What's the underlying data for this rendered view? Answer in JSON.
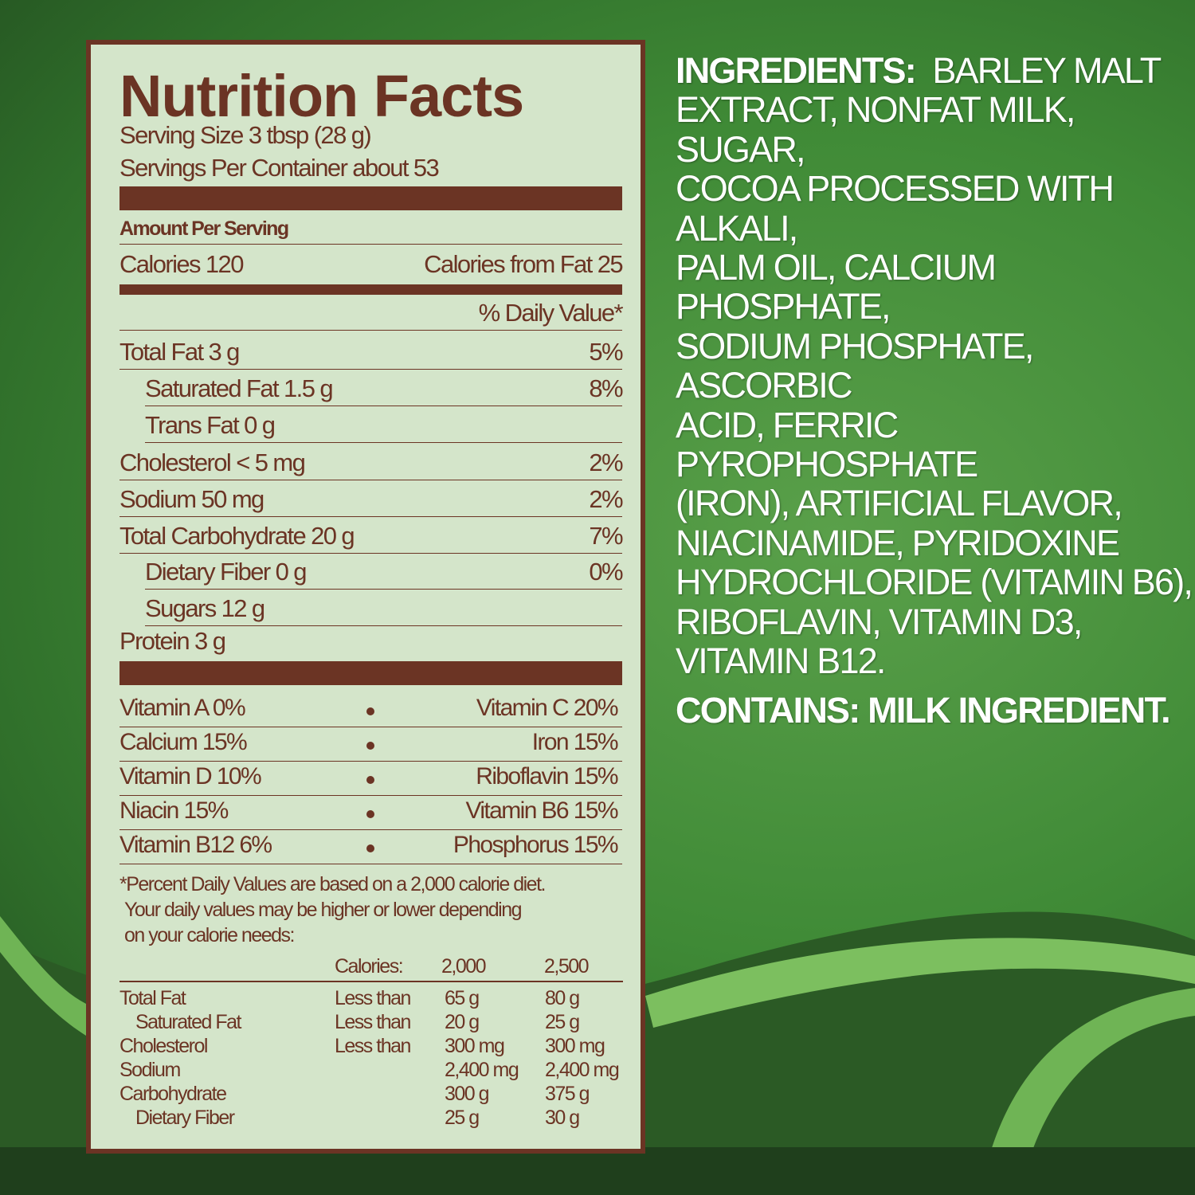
{
  "colors": {
    "label_brown": "#6b3424",
    "label_bg": "#d4e5ca",
    "background_green": "#3f8a36"
  },
  "label": {
    "title": "Nutrition Facts",
    "serving_size": "Serving Size 3 tbsp (28 g)",
    "servings_per_container": "Servings Per Container about 53",
    "amount_per_serving": "Amount Per Serving",
    "calories": "Calories 120",
    "calories_from_fat": "Calories from Fat 25",
    "daily_value_header": "% Daily Value*",
    "nutrients": [
      {
        "name": "Total Fat  3 g",
        "dv": "5%"
      },
      {
        "name": "Saturated Fat 1.5 g",
        "dv": "8%"
      },
      {
        "name": "Trans Fat 0 g",
        "dv": ""
      },
      {
        "name": "Cholesterol < 5 mg",
        "dv": "2%"
      },
      {
        "name": "Sodium 50 mg",
        "dv": "2%"
      },
      {
        "name": "Total Carbohydrate  20 g",
        "dv": "7%"
      },
      {
        "name": "Dietary Fiber 0 g",
        "dv": "0%"
      },
      {
        "name": "Sugars 12 g",
        "dv": ""
      },
      {
        "name": "Protein 3 g",
        "dv": ""
      }
    ],
    "vitamins": [
      {
        "left": "Vitamin  A  0%",
        "right": "Vitamin C  20%"
      },
      {
        "left": "Calcium  15%",
        "right": "Iron  15%"
      },
      {
        "left": "Vitamin D  10%",
        "right": "Riboflavin  15%"
      },
      {
        "left": "Niacin  15%",
        "right": "Vitamin B6  15%"
      },
      {
        "left": "Vitamin B12  6%",
        "right": "Phosphorus  15%"
      }
    ],
    "footnote": [
      "*Percent Daily Values are based on a 2,000 calorie diet.",
      "Your daily  values may be higher or lower depending",
      "on your calorie needs:"
    ],
    "dv_table": {
      "header": [
        "Calories:",
        "2,000",
        "2,500"
      ],
      "rows": [
        [
          "Total Fat",
          "Less than",
          "65 g",
          "80 g"
        ],
        [
          "Saturated Fat",
          "Less than",
          "20 g",
          "25 g"
        ],
        [
          "Cholesterol",
          "Less than",
          "300 mg",
          "300 mg"
        ],
        [
          "Sodium",
          "",
          "2,400 mg",
          "2,400 mg"
        ],
        [
          "Carbohydrate",
          "",
          "300 g",
          "375 g"
        ],
        [
          "Dietary Fiber",
          "",
          "25 g",
          "30 g"
        ]
      ]
    }
  },
  "ingredients": {
    "label": "INGREDIENTS:",
    "lines": [
      "BARLEY MALT",
      "EXTRACT, NONFAT MILK, SUGAR,",
      "COCOA PROCESSED WITH ALKALI,",
      "PALM OIL, CALCIUM PHOSPHATE,",
      "SODIUM PHOSPHATE, ASCORBIC",
      "ACID, FERRIC PYROPHOSPHATE",
      "(IRON), ARTIFICIAL FLAVOR,",
      "NIACINAMIDE, PYRIDOXINE",
      "HYDROCHLORIDE (VITAMIN B6),",
      "RIBOFLAVIN, VITAMIN D3,",
      "VITAMIN B12."
    ],
    "contains": "CONTAINS: MILK INGREDIENT."
  }
}
